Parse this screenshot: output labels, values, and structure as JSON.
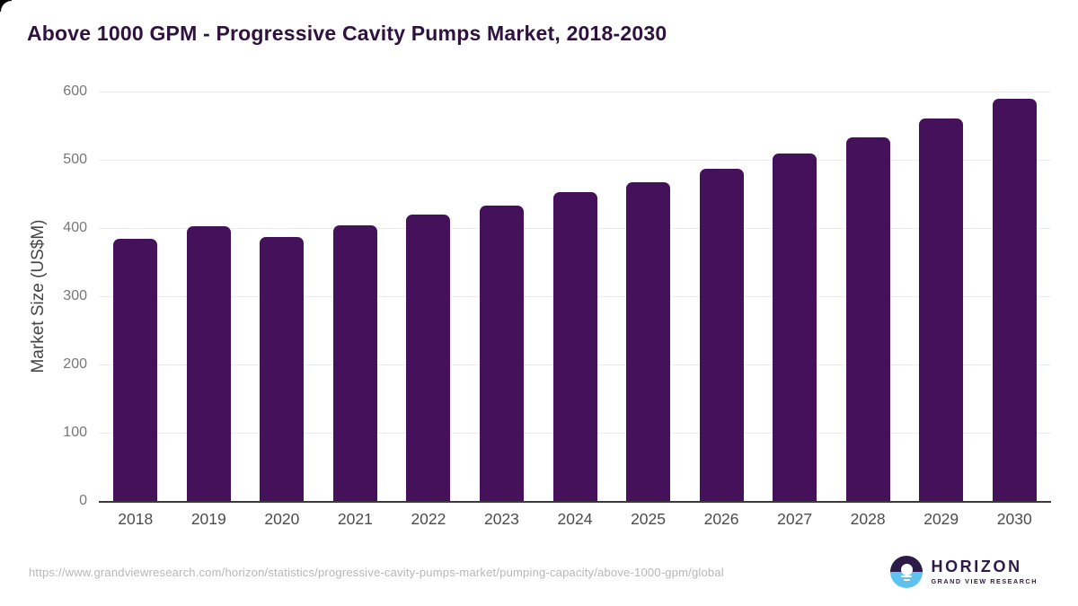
{
  "page": {
    "title": "Above 1000 GPM - Progressive Cavity Pumps Market, 2018-2030",
    "source_url": "https://www.grandviewresearch.com/horizon/statistics/progressive-cavity-pumps-market/pumping-capacity/above-1000-gpm/global"
  },
  "logo": {
    "name": "HORIZON",
    "subtitle": "GRAND VIEW RESEARCH",
    "icon": "horizon-sun-circle-icon",
    "purple": "#2b1b49",
    "blue": "#5ec1ee"
  },
  "colors": {
    "bar": "#45115A",
    "title_text": "#30123f",
    "gridline": "#ececec",
    "axis_line": "#3a3a3a",
    "y_tick_text": "#787878",
    "x_tick_text": "#4c4c4c",
    "url_text": "#b7b7b7",
    "background": "#ffffff"
  },
  "chart_data": {
    "type": "bar",
    "title": "Above 1000 GPM - Progressive Cavity Pumps Market, 2018-2030",
    "categories": [
      "2018",
      "2019",
      "2020",
      "2021",
      "2022",
      "2023",
      "2024",
      "2025",
      "2026",
      "2027",
      "2028",
      "2029",
      "2030"
    ],
    "values": [
      384,
      402,
      387,
      404,
      420,
      433,
      452,
      467,
      487,
      509,
      533,
      560,
      589
    ],
    "xlabel": "",
    "ylabel": "Market Size (US$M)",
    "ylim": [
      0,
      600
    ],
    "yticks": [
      0,
      100,
      200,
      300,
      400,
      500,
      600
    ],
    "grid": "horizontal-only",
    "legend": "none",
    "bar_color": "#45115A",
    "bar_corner_radius": "rounded-top"
  }
}
